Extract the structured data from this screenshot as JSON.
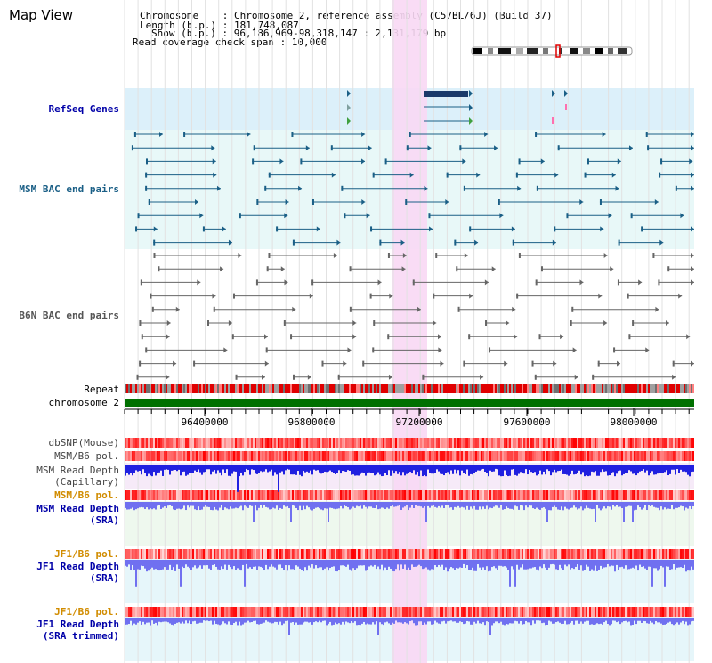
{
  "title": "Map View",
  "header": {
    "chromosome_line": "Chromosome    : Chromosome 2, reference assembly (C57BL/6J) (Build 37)",
    "length_line": "Length (b.p.) : 181,748,087",
    "show_line": "Show (b.p.) : 96,186,969-98,318,147 : 2,131,179 bp",
    "coverage_line": "Read coverage check span : 10,000"
  },
  "tracks": {
    "refseq_label": "RefSeq Genes",
    "msm_bac_label": "MSM BAC end pairs",
    "b6n_bac_label": "B6N BAC end pairs",
    "repeat_label": "Repeat",
    "chromosome_label": "chromosome 2",
    "dbsnp_label": "dbSNP(Mouse)",
    "msm_b6_pol_label": "MSM/B6 pol.",
    "msm_read_depth_cap_label1": "MSM Read Depth",
    "msm_read_depth_cap_label2": "(Capillary)",
    "msm_b6_pol2_label": "MSM/B6 pol.",
    "msm_read_depth_sra_label1": "MSM Read Depth",
    "msm_read_depth_sra_label2": "(SRA)",
    "jf1_b6_pol_label": "JF1/B6 pol.",
    "jf1_read_depth_label1": "JF1 Read Depth",
    "jf1_read_depth_label2": "(SRA)",
    "jf1_b6_pol2_label": "JF1/B6 pol.",
    "jf1_read_depth_trim_label1": "JF1 Read Depth",
    "jf1_read_depth_trim_label2": "(SRA trimmed)"
  },
  "axis": {
    "ticks": [
      "96400000",
      "96800000",
      "97200000",
      "97600000",
      "98000000"
    ]
  },
  "colors": {
    "highlight": "#f8d8f4",
    "refseq_bg": "#dcf0fa",
    "msm_bac": "#1a5f86",
    "b6n_bac": "#555555",
    "chromosome_bar": "#007000",
    "depth_blue": "#2020e0",
    "depth_light": "#7070f0",
    "title_blue": "#0000a8",
    "orange": "#d18c00"
  }
}
